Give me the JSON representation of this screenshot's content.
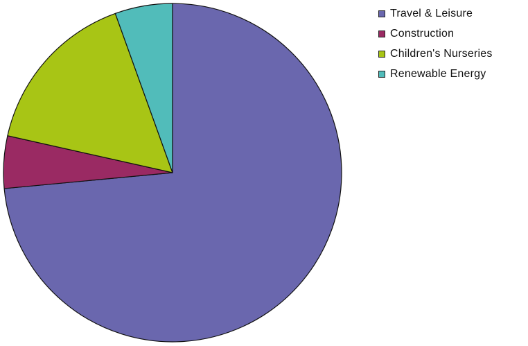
{
  "chart_data": {
    "type": "pie",
    "categories": [
      "Travel & Leisure",
      "Construction",
      "Children's Nurseries",
      "Renewable Energy"
    ],
    "values": [
      73.5,
      5.0,
      16.0,
      5.5
    ],
    "colors": [
      "#6a67ae",
      "#9a2a63",
      "#a8c515",
      "#51bcba"
    ],
    "start_angle_deg": 0,
    "direction": "clockwise",
    "legend_position": "top-right",
    "title": ""
  }
}
